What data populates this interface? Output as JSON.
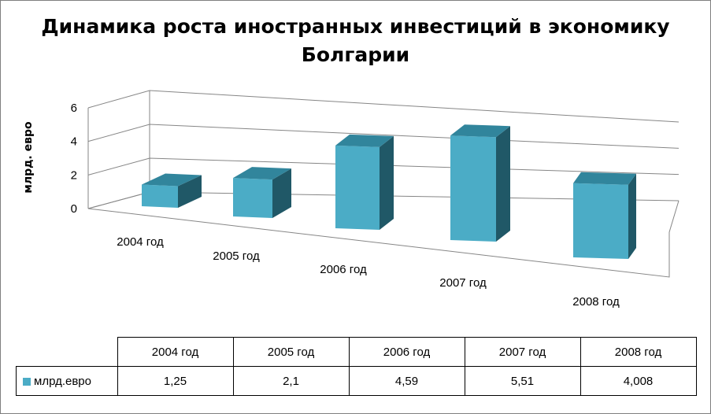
{
  "chart_data": {
    "type": "bar",
    "title": "Динамика роста иностранных инвестиций в экономику Болгарии",
    "title_lines": [
      "Динамика роста иностранных инвестиций в экономику",
      "Болгарии"
    ],
    "ylabel": "млрд. евро",
    "categories": [
      "2004 год",
      "2005 год",
      "2006 год",
      "2007 год",
      "2008 год"
    ],
    "series": [
      {
        "name": "млрд.евро",
        "values": [
          1.25,
          2.1,
          4.59,
          5.51,
          4.008
        ]
      }
    ],
    "value_labels": [
      "1,25",
      "2,1",
      "4,59",
      "5,51",
      "4,008"
    ],
    "yticks": [
      "0",
      "2",
      "4",
      "6"
    ],
    "ylim": [
      0,
      6
    ],
    "grid": true,
    "legend": "data-table",
    "colors": {
      "bar": "#4bacc6",
      "bar_top": "#31859c",
      "bar_side": "#205867",
      "grid": "#868686"
    }
  }
}
